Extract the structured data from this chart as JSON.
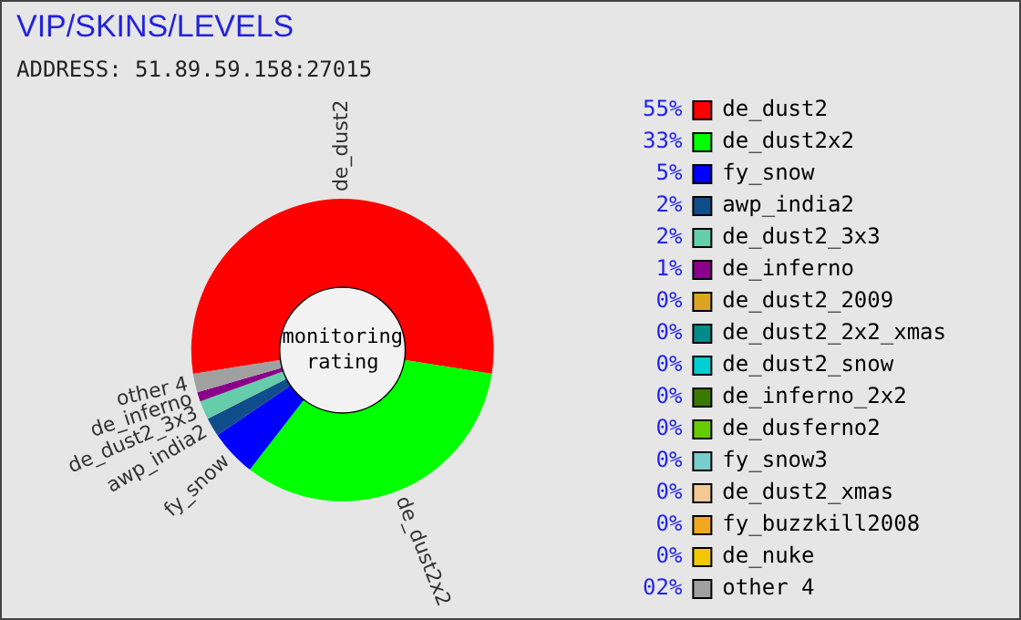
{
  "chart_data": {
    "type": "donut",
    "title": "VIP/SKINS/LEVELS",
    "subtitle": "ADDRESS: 51.89.59.158:27015",
    "annotations": [
      "monitoring rating"
    ],
    "legend": "right",
    "categories": [
      "de_dust2",
      "de_dust2x2",
      "fy_snow",
      "awp_india2",
      "de_dust2_3x3",
      "de_inferno",
      "de_dust2_2009",
      "de_dust2_2x2_xmas",
      "de_dust2_snow",
      "de_inferno_2x2",
      "de_dusferno2",
      "fy_snow3",
      "de_dust2_xmas",
      "fy_buzzkill2008",
      "de_nuke",
      "other 4"
    ],
    "values": [
      55,
      33,
      5,
      2,
      2,
      1,
      0,
      0,
      0,
      0,
      0,
      0,
      0,
      0,
      0,
      2
    ],
    "value_labels": [
      "55%",
      "33%",
      "5%",
      "2%",
      "2%",
      "1%",
      "0%",
      "0%",
      "0%",
      "0%",
      "0%",
      "0%",
      "0%",
      "0%",
      "0%",
      "02%"
    ],
    "colors": [
      "#ff0000",
      "#00ff00",
      "#0000ff",
      "#104e8b",
      "#66cdaa",
      "#8b008b",
      "#daa520",
      "#008b8b",
      "#00ced1",
      "#3a7a00",
      "#66cc00",
      "#79cdcd",
      "#f4c895",
      "#f0a820",
      "#f0c800",
      "#a0a0a0"
    ]
  }
}
